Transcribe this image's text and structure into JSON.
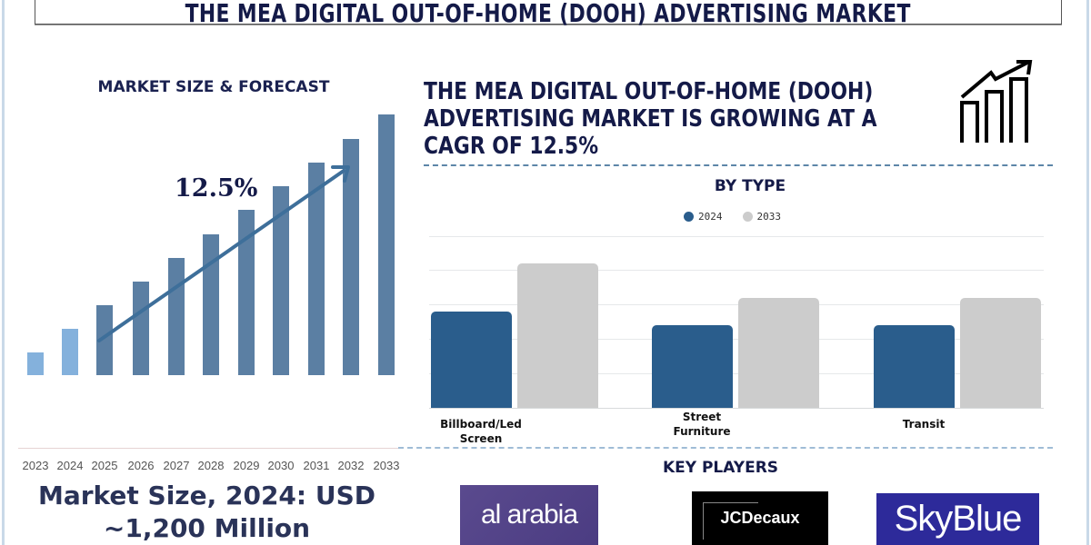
{
  "title": "THE MEA DIGITAL OUT-OF-HOME (DOOH) ADVERTISING MARKET",
  "left_panel": {
    "heading": "MARKET SIZE & FORECAST",
    "cagr_label": "12.5%",
    "market_size_line1": "Market Size, 2024: USD",
    "market_size_line2": "~1,200 Million"
  },
  "headline": {
    "line1": "THE MEA DIGITAL OUT-OF-HOME (DOOH)",
    "line2": "ADVERTISING MARKET IS GROWING AT A",
    "line3": "CAGR OF 12.5%",
    "icon": "growth-chart-icon"
  },
  "by_type": {
    "heading": "BY TYPE",
    "legend": [
      {
        "label": "2024",
        "color": "#2a5d8c"
      },
      {
        "label": "2033",
        "color": "#cccccc"
      }
    ]
  },
  "key_players": {
    "heading": "KEY PLAYERS",
    "logos": [
      {
        "name": "al arabia"
      },
      {
        "name": "JCDecaux"
      },
      {
        "name": "SkyBlue"
      }
    ]
  },
  "colors": {
    "title_text": "#141a48",
    "bar_historical": "#84b1dc",
    "bar_forecast": "#5b7fa3",
    "arrow": "#3e6f9a",
    "series_2024": "#2a5d8c",
    "series_2033": "#cccccc",
    "dash": "#5d86a8"
  },
  "chart_data": [
    {
      "type": "bar",
      "title": "MARKET SIZE & FORECAST",
      "categories": [
        "2023",
        "2024",
        "2025",
        "2026",
        "2027",
        "2028",
        "2029",
        "2030",
        "2031",
        "2032",
        "2033"
      ],
      "values": [
        25,
        51,
        77,
        103,
        129,
        155,
        182,
        208,
        234,
        260,
        287
      ],
      "value_note": "relative bar heights in px (no y-axis shown)",
      "annotation": "12.5%",
      "xlabel": "",
      "ylabel": "",
      "grid": false
    },
    {
      "type": "bar",
      "title": "BY TYPE",
      "categories": [
        "Billboard/Led Screen",
        "Street Furniture",
        "Transit"
      ],
      "series": [
        {
          "name": "2024",
          "values": [
            106,
            91,
            91
          ]
        },
        {
          "name": "2033",
          "values": [
            159,
            121,
            121
          ]
        }
      ],
      "value_note": "relative bar heights in px (no y-axis labels shown)",
      "legend_position": "top",
      "grid": true
    }
  ]
}
